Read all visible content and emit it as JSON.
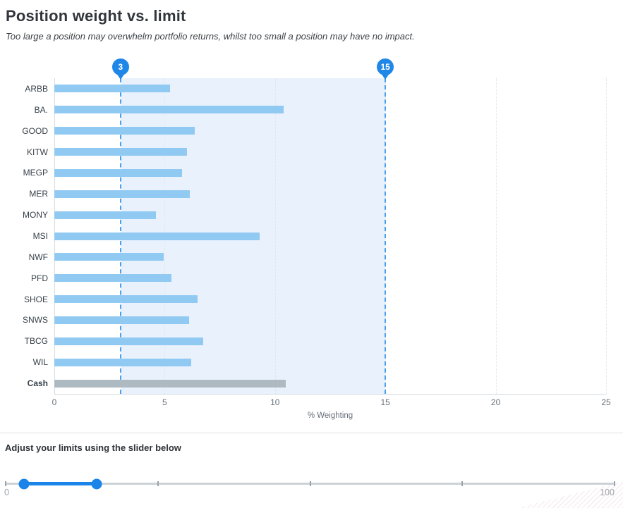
{
  "header": {
    "title": "Position weight vs. limit",
    "subtitle": "Too large a position may overwhelm portfolio returns, whilst too small a position may have no impact."
  },
  "chart_data": {
    "type": "bar",
    "orientation": "horizontal",
    "title": "Position weight vs. limit",
    "categories": [
      "ARBB",
      "BA.",
      "GOOD",
      "KITW",
      "MEGP",
      "MER",
      "MONY",
      "MSI",
      "NWF",
      "PFD",
      "SHOE",
      "SNWS",
      "TBCG",
      "WIL",
      "Cash"
    ],
    "values": [
      5.25,
      10.4,
      6.35,
      6.0,
      5.8,
      6.15,
      4.6,
      9.3,
      4.95,
      5.3,
      6.5,
      6.1,
      6.75,
      6.2,
      10.5
    ],
    "emphasized_category": "Cash",
    "xlabel": "% Weighting",
    "xlim": [
      0,
      25
    ],
    "xticks": [
      0,
      5,
      10,
      15,
      20,
      25
    ],
    "grid": true,
    "plot_band": {
      "from": 3,
      "to": 15
    },
    "limit_markers": [
      {
        "value": 3,
        "label": "3"
      },
      {
        "value": 15,
        "label": "15"
      }
    ]
  },
  "slider": {
    "label": "Adjust your limits using the slider below",
    "min": 0,
    "max": 100,
    "min_label": "0",
    "max_label": "100",
    "values": [
      3,
      15
    ],
    "tick_values": [
      0,
      25,
      50,
      75,
      100
    ]
  },
  "colors": {
    "accent_blue": "#1f87e8",
    "bar_blue": "#90c9f2",
    "cash_gray": "#adbac1",
    "band_blue": "#e9f2fc",
    "dashed_line_blue": "#4aa0ee",
    "slider_track_gray": "#ccd1d6"
  }
}
